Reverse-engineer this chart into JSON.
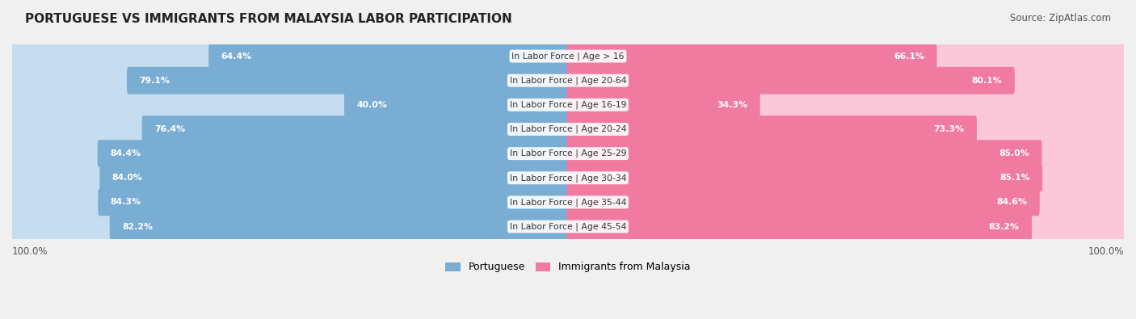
{
  "title": "PORTUGUESE VS IMMIGRANTS FROM MALAYSIA LABOR PARTICIPATION",
  "source": "Source: ZipAtlas.com",
  "categories": [
    "In Labor Force | Age > 16",
    "In Labor Force | Age 20-64",
    "In Labor Force | Age 16-19",
    "In Labor Force | Age 20-24",
    "In Labor Force | Age 25-29",
    "In Labor Force | Age 30-34",
    "In Labor Force | Age 35-44",
    "In Labor Force | Age 45-54"
  ],
  "portuguese_values": [
    64.4,
    79.1,
    40.0,
    76.4,
    84.4,
    84.0,
    84.3,
    82.2
  ],
  "malaysia_values": [
    66.1,
    80.1,
    34.3,
    73.3,
    85.0,
    85.1,
    84.6,
    83.2
  ],
  "portuguese_color": "#7aadd4",
  "malaysia_color": "#f07aa0",
  "portuguese_light_color": "#c5ddef",
  "malaysia_light_color": "#fac8d8",
  "bg_color": "#f0f0f0",
  "bar_height": 0.62,
  "max_value": 100.0,
  "legend_portuguese": "Portuguese",
  "legend_malaysia": "Immigrants from Malaysia"
}
